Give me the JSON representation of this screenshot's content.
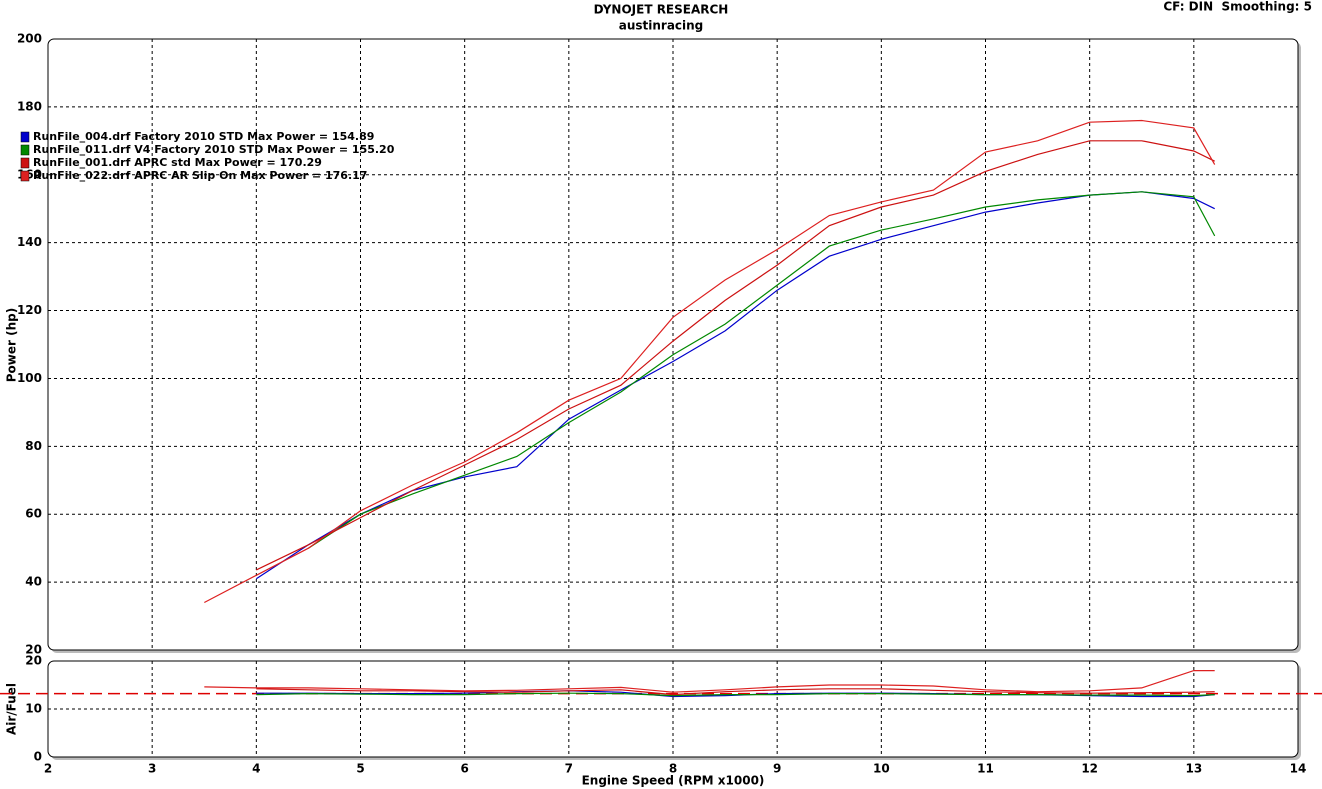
{
  "chart_data": [
    {
      "type": "line",
      "title": "DYNOJET RESEARCH",
      "subtitle": "austinracing",
      "annotation": "CF: DIN  Smoothing: 5",
      "y_label": "Power (hp)",
      "legend": "upper-left",
      "grid": true,
      "x": [
        3.5,
        4,
        4.5,
        5,
        5.5,
        6,
        6.5,
        7,
        7.5,
        8,
        8.5,
        9,
        9.5,
        10,
        10.5,
        11,
        11.5,
        12,
        12.5,
        13,
        13.2
      ],
      "xlim": [
        2,
        14
      ],
      "ylim": [
        20,
        200
      ],
      "yticks": [
        20,
        40,
        60,
        80,
        100,
        120,
        140,
        160,
        180,
        200
      ],
      "series": [
        {
          "name": "RunFile_004.drf Factory 2010 STD Max Power = 154.89",
          "color": "#0000cc",
          "values": [
            null,
            41,
            51,
            60,
            67,
            71,
            74,
            88,
            96.6,
            105,
            114,
            126,
            136,
            141,
            145,
            149,
            151.7,
            154,
            155,
            153,
            150
          ]
        },
        {
          "name": "RunFile_011.drf V4 Factory 2010 STD Max Power = 155.20",
          "color": "#008800",
          "values": [
            null,
            null,
            50,
            60,
            66,
            71.5,
            77,
            87,
            96,
            107,
            116,
            127.5,
            139,
            143.7,
            147,
            150.5,
            152.6,
            154,
            155,
            153.5,
            142
          ]
        },
        {
          "name": "RunFile_001.drf APRC std Max Power = 170.29",
          "color": "#cc1111",
          "values": [
            null,
            43.6,
            51,
            59,
            67,
            74.5,
            82,
            91,
            98,
            111,
            123,
            133.4,
            145,
            150.5,
            154,
            161,
            166,
            170,
            170,
            167,
            164
          ]
        },
        {
          "name": "RunFile_022.drf APRC AR Slip On Max Power = 176.17",
          "color": "#dd2020",
          "values": [
            34,
            42,
            50,
            61,
            68.6,
            75.4,
            84,
            93.6,
            100,
            118,
            129,
            138,
            148,
            152,
            155.5,
            166.7,
            170,
            175.5,
            176,
            173.8,
            163
          ]
        }
      ]
    },
    {
      "type": "line",
      "y_label": "Air/Fuel",
      "x_label": "Engine Speed (RPM x1000)",
      "grid": true,
      "x": [
        3.5,
        4,
        4.5,
        5,
        5.5,
        6,
        6.5,
        7,
        7.5,
        8,
        8.5,
        9,
        9.5,
        10,
        10.5,
        11,
        11.5,
        12,
        12.5,
        13,
        13.2
      ],
      "xlim": [
        2,
        14
      ],
      "xticks": [
        2,
        3,
        4,
        5,
        6,
        7,
        8,
        9,
        10,
        11,
        12,
        13,
        14
      ],
      "ylim": [
        0,
        20
      ],
      "yticks": [
        0,
        10,
        20
      ],
      "target": 13.2,
      "target_color": "#dd0000",
      "series": [
        {
          "color": "#0000cc",
          "values": [
            null,
            13.3,
            13.3,
            13.2,
            13.2,
            13.3,
            13.6,
            13.8,
            13.5,
            12.6,
            12.8,
            13.2,
            13.3,
            13.3,
            13.2,
            13.0,
            13.0,
            12.8,
            12.6,
            12.6,
            13.0
          ]
        },
        {
          "color": "#008800",
          "values": [
            null,
            13.0,
            13.2,
            13.1,
            13.0,
            13.0,
            13.2,
            13.3,
            13.2,
            12.8,
            13.0,
            13.0,
            13.2,
            13.2,
            13.1,
            13.0,
            13.0,
            12.9,
            12.9,
            12.8,
            13.0
          ]
        },
        {
          "color": "#cc1111",
          "values": [
            null,
            14.2,
            14.0,
            13.8,
            13.8,
            13.6,
            13.5,
            13.8,
            14.0,
            13.0,
            13.6,
            14.0,
            14.2,
            14.2,
            13.9,
            13.6,
            13.4,
            13.3,
            13.4,
            13.5,
            13.6
          ]
        },
        {
          "color": "#dd2020",
          "values": [
            14.6,
            14.4,
            14.4,
            14.2,
            14.0,
            13.8,
            13.9,
            14.2,
            14.5,
            13.5,
            14.0,
            14.6,
            15.0,
            15.0,
            14.8,
            14.0,
            13.6,
            13.8,
            14.4,
            18.0,
            18.0
          ]
        }
      ]
    }
  ]
}
